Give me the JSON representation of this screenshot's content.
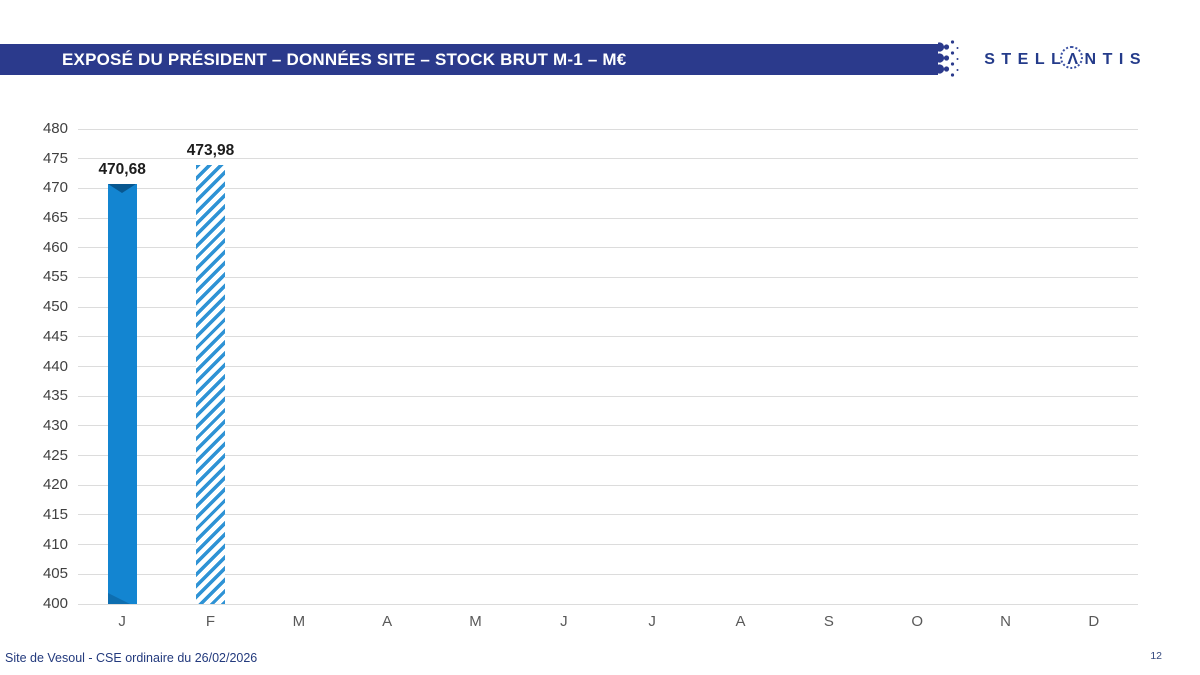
{
  "header": {
    "title": "EXPOSÉ DU PRÉSIDENT – DONNÉES SITE – STOCK BRUT M-1 – M€",
    "logo_text": "STELLANTIS",
    "logo_left": "STELL",
    "logo_a": "Λ",
    "logo_right": "NTIS",
    "banner_color": "#2b3a8c",
    "logo_color": "#243b8a"
  },
  "chart_data": {
    "type": "bar",
    "categories": [
      "J",
      "F",
      "M",
      "A",
      "M",
      "J",
      "J",
      "A",
      "S",
      "O",
      "N",
      "D"
    ],
    "values": [
      470.68,
      473.98,
      null,
      null,
      null,
      null,
      null,
      null,
      null,
      null,
      null,
      null
    ],
    "value_labels": [
      "470,68",
      "473,98"
    ],
    "bar_styles": [
      "solid",
      "hatched"
    ],
    "yticks": [
      480,
      475,
      470,
      465,
      460,
      455,
      450,
      445,
      440,
      435,
      430,
      425,
      420,
      415,
      410,
      405,
      400
    ],
    "ylim": [
      400,
      480
    ],
    "grid": true,
    "legend": "none",
    "bar_color": "#1385d1",
    "hatch_color": "#2f93d5",
    "gridline_color": "#dcdcdc"
  },
  "footer": {
    "left": "Site de Vesoul - CSE ordinaire du 26/02/2026",
    "page_number": "12"
  }
}
